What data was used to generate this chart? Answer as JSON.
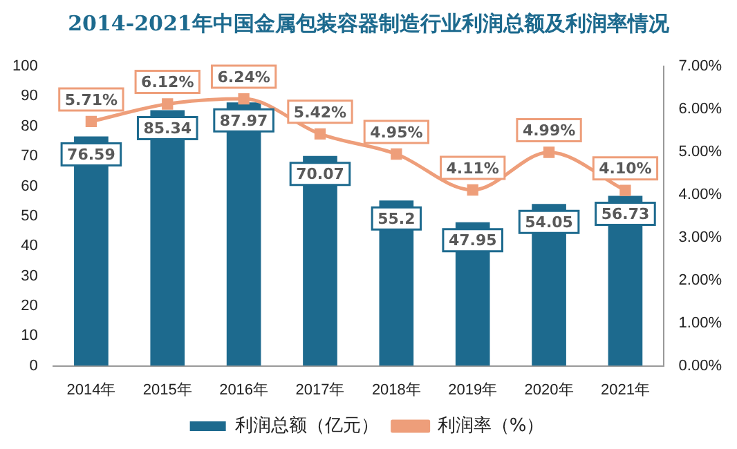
{
  "chart_data": {
    "type": "bar",
    "title": "2014-2021年中国金属包装容器制造行业利润总额及利润率情况",
    "categories": [
      "2014年",
      "2015年",
      "2016年",
      "2017年",
      "2018年",
      "2019年",
      "2020年",
      "2021年"
    ],
    "series": [
      {
        "name": "利润总额（亿元）",
        "color": "#1d6a8e",
        "values": [
          76.59,
          85.34,
          87.97,
          70.07,
          55.2,
          47.95,
          54.05,
          56.73
        ],
        "value_labels": [
          "76.59",
          "85.34",
          "87.97",
          "70.07",
          "55.2",
          "47.95",
          "54.05",
          "56.73"
        ]
      },
      {
        "name": "利润率（%）",
        "type": "line",
        "axis": "y2",
        "color": "#ee9e7a",
        "marker": "square",
        "values": [
          5.71,
          6.12,
          6.24,
          5.42,
          4.95,
          4.11,
          4.99,
          4.1
        ],
        "value_labels": [
          "5.71%",
          "6.12%",
          "6.24%",
          "5.42%",
          "4.95%",
          "4.11%",
          "4.99%",
          "4.10%"
        ]
      }
    ],
    "ylim": [
      0,
      100
    ],
    "yticks": [
      0,
      10,
      20,
      30,
      40,
      50,
      60,
      70,
      80,
      90,
      100
    ],
    "y2lim": [
      0,
      7
    ],
    "y2ticks": [
      {
        "value": 0,
        "label": "0.00%"
      },
      {
        "value": 1,
        "label": "1.00%"
      },
      {
        "value": 2,
        "label": "2.00%"
      },
      {
        "value": 3,
        "label": "3.00%"
      },
      {
        "value": 4,
        "label": "4.00%"
      },
      {
        "value": 5,
        "label": "5.00%"
      },
      {
        "value": 6,
        "label": "6.00%"
      },
      {
        "value": 7,
        "label": "7.00%"
      }
    ],
    "grid": false,
    "legend": "bottom"
  }
}
